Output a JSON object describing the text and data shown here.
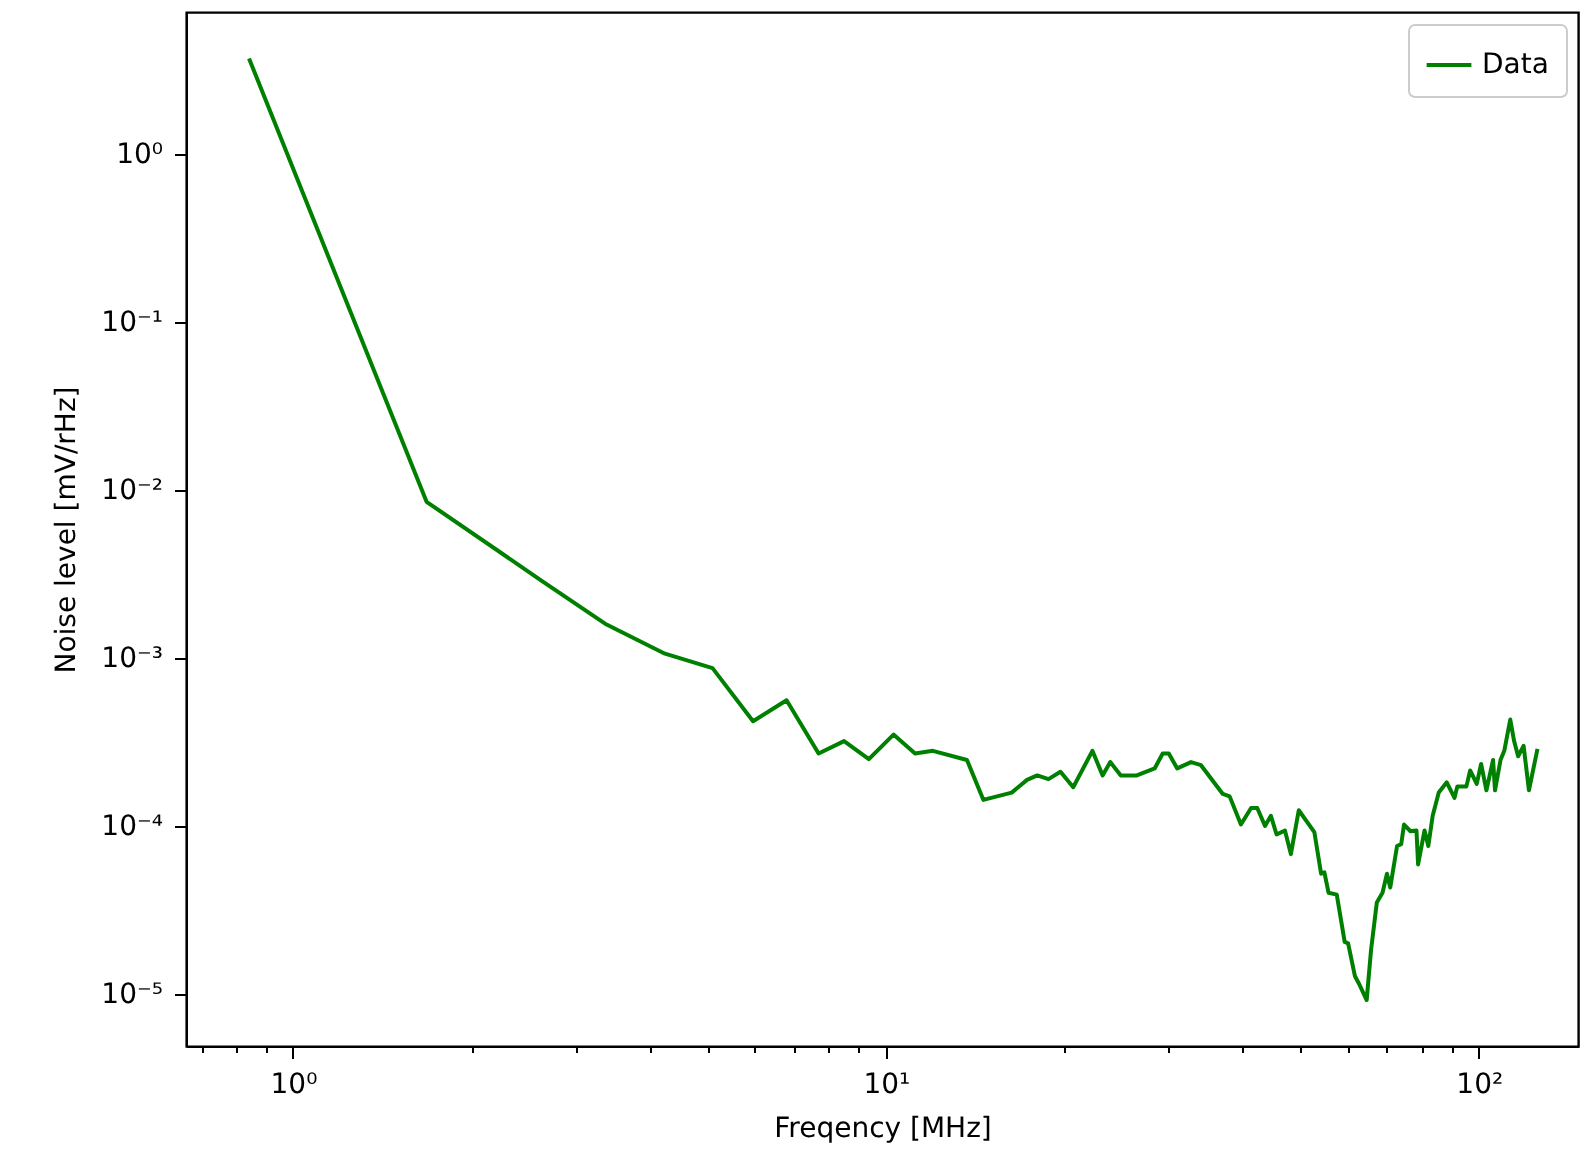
{
  "chart_data": {
    "type": "line",
    "xlabel": "Freqency [MHz]",
    "ylabel": "Noise level [mV/rHz]",
    "log": "xy",
    "grid": false,
    "legend": "top right",
    "marker": "none",
    "line_style": "solid",
    "xlim": [
      0.66,
      147
    ],
    "ylim": [
      4.9e-06,
      7
    ],
    "xticks": [
      {
        "value": 0.7,
        "label": null
      },
      {
        "value": 0.8,
        "label": null
      },
      {
        "value": 0.9,
        "label": null
      },
      {
        "value": 1,
        "label": "10⁰"
      },
      {
        "value": 2,
        "label": null
      },
      {
        "value": 3,
        "label": null
      },
      {
        "value": 4,
        "label": null
      },
      {
        "value": 5,
        "label": null
      },
      {
        "value": 6,
        "label": null
      },
      {
        "value": 7,
        "label": null
      },
      {
        "value": 8,
        "label": null
      },
      {
        "value": 9,
        "label": null
      },
      {
        "value": 10,
        "label": "10¹"
      },
      {
        "value": 20,
        "label": null
      },
      {
        "value": 30,
        "label": null
      },
      {
        "value": 40,
        "label": null
      },
      {
        "value": 50,
        "label": null
      },
      {
        "value": 60,
        "label": null
      },
      {
        "value": 70,
        "label": null
      },
      {
        "value": 80,
        "label": null
      },
      {
        "value": 90,
        "label": null
      },
      {
        "value": 100,
        "label": "10²"
      }
    ],
    "yticks": [
      {
        "value": 1e-05,
        "label": "10⁻⁵"
      },
      {
        "value": 0.0001,
        "label": "10⁻⁴"
      },
      {
        "value": 0.001,
        "label": "10⁻³"
      },
      {
        "value": 0.01,
        "label": "10⁻²"
      },
      {
        "value": 0.1,
        "label": "10⁻¹"
      },
      {
        "value": 1,
        "label": "10⁰"
      }
    ],
    "x": [
      0.843,
      1.68,
      2.62,
      3.36,
      4.24,
      5.1,
      5.97,
      6.8,
      7.7,
      8.5,
      9.36,
      10.3,
      11.2,
      12.0,
      13.7,
      14.6,
      16.3,
      17.3,
      18.0,
      18.8,
      19.7,
      20.7,
      22.3,
      23.2,
      23.9,
      24.9,
      26.5,
      28.4,
      29.3,
      30.0,
      31.0,
      32.7,
      34,
      37,
      38,
      39.7,
      41.3,
      42.3,
      43.6,
      44.6,
      45.6,
      47.1,
      48.2,
      49.7,
      52.8,
      54.2,
      54.9,
      55.8,
      57.6,
      59.4,
      60.2,
      61.8,
      62.8,
      64.7,
      65.8,
      67.3,
      68.8,
      70,
      70.9,
      72.8,
      74,
      74.8,
      76.7,
      78.5,
      79,
      81,
      82.2,
      83.6,
      85.6,
      88.3,
      91,
      92,
      95.3,
      96.7,
      99.2,
      100.9,
      103,
      105.7,
      106.5,
      108.8,
      110.4,
      113,
      114.7,
      116.5,
      119,
      121.5,
      125.6
    ],
    "series": [
      {
        "name": "Data",
        "color": "#008000",
        "values": [
          3.7,
          0.0085,
          0.0029,
          0.0016,
          0.00106,
          0.00087,
          0.00042,
          0.00056,
          0.00027,
          0.00032,
          0.00025,
          0.00035,
          0.00027,
          0.00028,
          0.000247,
          0.000143,
          0.000158,
          0.000188,
          0.0002,
          0.00019,
          0.00021,
          0.00017,
          0.00028,
          0.0002,
          0.00024,
          0.0002,
          0.0002,
          0.00022,
          0.00027,
          0.00027,
          0.00022,
          0.00024,
          0.00023,
          0.000155,
          0.00015,
          0.000102,
          0.000128,
          0.000128,
          0.0001,
          0.000115,
          8.9e-05,
          9.4e-05,
          6.8e-05,
          0.000124,
          9.2e-05,
          5.2e-05,
          5.3e-05,
          4e-05,
          3.9e-05,
          2.04e-05,
          2e-05,
          1.28e-05,
          1.15e-05,
          9.2e-06,
          1.82e-05,
          3.5e-05,
          4e-05,
          5.2e-05,
          4.3e-05,
          7.6e-05,
          7.8e-05,
          0.000102,
          9.3e-05,
          9.4e-05,
          5.9e-05,
          9.4e-05,
          7.6e-05,
          0.000115,
          0.000158,
          0.000182,
          0.000147,
          0.000172,
          0.000172,
          0.000214,
          0.000178,
          0.000234,
          0.000163,
          0.000247,
          0.000163,
          0.000247,
          0.00028,
          0.00043,
          0.00032,
          0.00026,
          0.0003,
          0.000163,
          0.000288
        ]
      }
    ]
  }
}
